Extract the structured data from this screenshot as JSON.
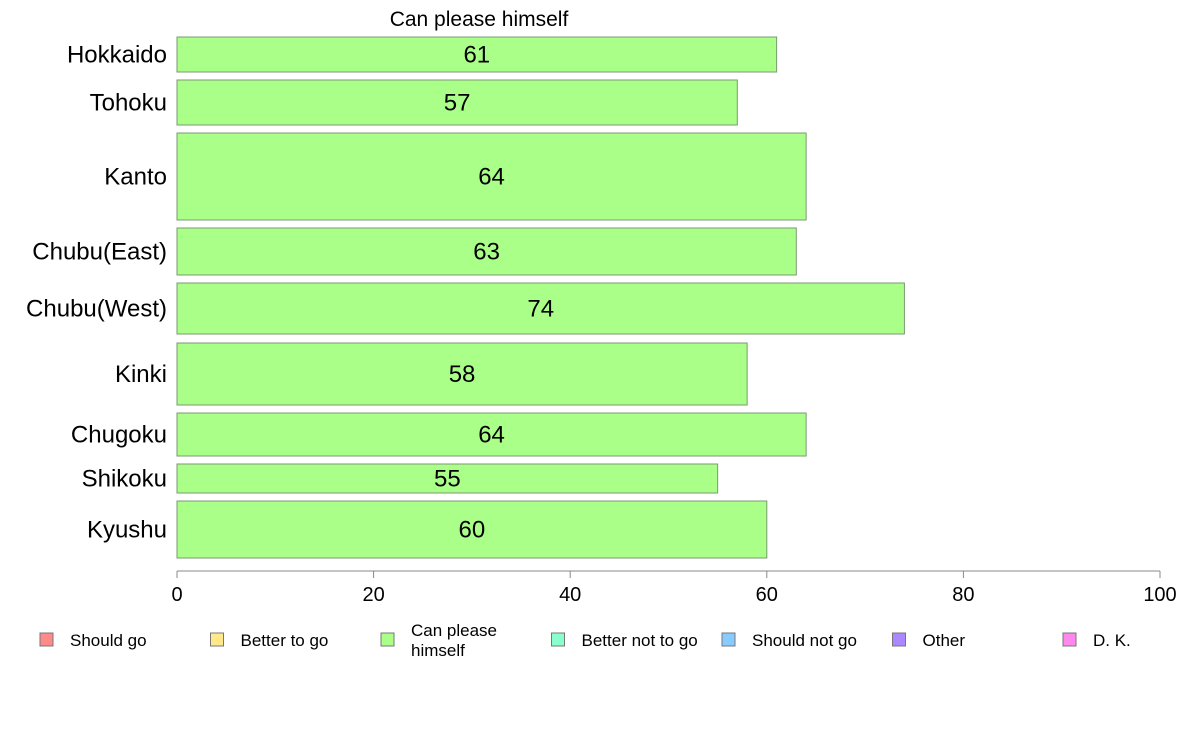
{
  "chart_data": {
    "type": "bar",
    "orientation": "horizontal",
    "title": "Can please himself",
    "xlabel": "",
    "ylabel": "",
    "xlim": [
      0,
      100
    ],
    "x_ticks": [
      0,
      20,
      40,
      60,
      80,
      100
    ],
    "grid": false,
    "categories": [
      "Hokkaido",
      "Tohoku",
      "Kanto",
      "Chubu(East)",
      "Chubu(West)",
      "Kinki",
      "Chugoku",
      "Shikoku",
      "Kyushu"
    ],
    "series": [
      {
        "name": "Can please himself",
        "values": [
          61,
          57,
          64,
          63,
          74,
          58,
          64,
          55,
          60
        ],
        "color": "#aaff88"
      }
    ],
    "legend_position": "bottom",
    "legend": [
      {
        "label": "Should go",
        "color": "#ff8a8a"
      },
      {
        "label": "Better to go",
        "color": "#ffe98a"
      },
      {
        "label": "Can please himself",
        "color": "#aaff88"
      },
      {
        "label": "Better not to go",
        "color": "#88ffcc"
      },
      {
        "label": "Should not go",
        "color": "#88ccff"
      },
      {
        "label": "Other",
        "color": "#aa88ff"
      },
      {
        "label": "D. K.",
        "color": "#ff88ee"
      }
    ]
  }
}
